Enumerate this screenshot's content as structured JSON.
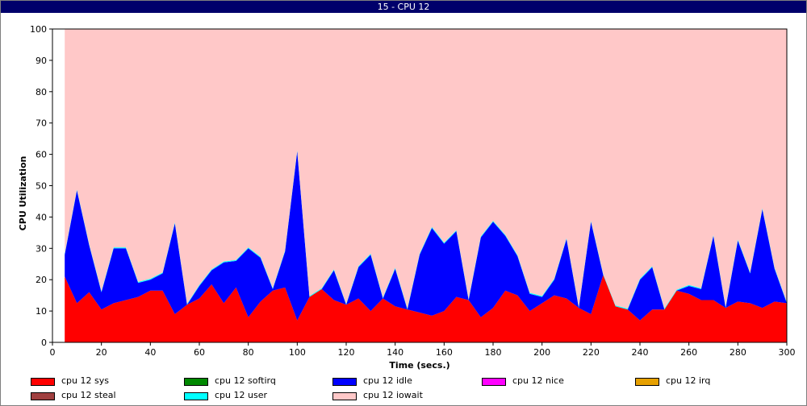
{
  "window": {
    "title": "15 - CPU 12"
  },
  "chart_data": {
    "type": "area",
    "title": "15 - CPU 12",
    "xlabel": "Time (secs.)",
    "ylabel": "CPU Utilization",
    "xlim": [
      0,
      300
    ],
    "ylim": [
      0,
      100
    ],
    "xticks": [
      0,
      20,
      40,
      60,
      80,
      100,
      120,
      140,
      160,
      180,
      200,
      220,
      240,
      260,
      280,
      300
    ],
    "yticks": [
      0,
      10,
      20,
      30,
      40,
      50,
      60,
      70,
      80,
      90,
      100
    ],
    "grid": false,
    "legend_position": "bottom",
    "x": [
      5,
      10,
      15,
      20,
      25,
      30,
      35,
      40,
      45,
      50,
      55,
      60,
      65,
      70,
      75,
      80,
      85,
      90,
      95,
      100,
      105,
      110,
      115,
      120,
      125,
      130,
      135,
      140,
      145,
      150,
      155,
      160,
      165,
      170,
      175,
      180,
      185,
      190,
      195,
      200,
      205,
      210,
      215,
      220,
      225,
      230,
      235,
      240,
      245,
      250,
      255,
      260,
      265,
      270,
      275,
      280,
      285,
      290,
      295,
      300
    ],
    "series": [
      {
        "name": "cpu 12 sys",
        "color": "#ff0000",
        "values": [
          21,
          12.5,
          16,
          10.5,
          12.5,
          13.5,
          14.5,
          16.5,
          16.5,
          9,
          12,
          14,
          18.5,
          12.5,
          17.5,
          8,
          13,
          16.5,
          17.5,
          7,
          14.5,
          17,
          13.5,
          12,
          14,
          10,
          14,
          11.5,
          10.5,
          9.5,
          8.5,
          10,
          14.5,
          13.5,
          8,
          11,
          16.5,
          15,
          10,
          12.5,
          15,
          14,
          11,
          9,
          21.5,
          11.5,
          10.5,
          7,
          10.5,
          10.5,
          16.5,
          15.5,
          13.5,
          13.5,
          11,
          13,
          12.5,
          11,
          13,
          12.5
        ]
      },
      {
        "name": "cpu 12 softirq",
        "color": "#008800",
        "values": [
          0,
          0,
          0,
          0,
          0,
          0,
          0,
          0,
          0,
          0,
          0,
          0,
          0,
          0,
          0,
          0,
          0,
          0,
          0,
          0,
          0,
          0,
          0,
          0,
          0,
          0,
          0,
          0,
          0,
          0,
          0,
          0,
          0,
          0,
          0,
          0,
          0,
          0,
          0,
          0,
          0,
          0,
          0,
          0,
          0,
          0,
          0,
          0,
          0,
          0,
          0,
          0,
          0,
          0,
          0,
          0,
          0,
          0,
          0,
          0
        ]
      },
      {
        "name": "cpu 12 idle",
        "color": "#0000ff",
        "values": [
          7,
          36,
          15,
          5.5,
          17.5,
          16.5,
          4.5,
          3.5,
          5.5,
          29,
          0,
          4,
          4.5,
          13,
          8.5,
          22,
          14,
          0.5,
          11.5,
          54,
          0,
          0,
          9.5,
          0,
          10,
          18,
          0,
          12,
          0,
          18.5,
          28,
          21.5,
          21,
          0,
          25.5,
          27.5,
          17.5,
          12.5,
          5.5,
          2,
          5,
          19,
          0,
          29.5,
          0,
          0,
          0,
          13,
          13.5,
          0,
          0,
          2.5,
          3.5,
          20.5,
          0,
          19.5,
          9.5,
          31.5,
          10.5,
          0
        ]
      },
      {
        "name": "cpu 12 nice",
        "color": "#ff00ff",
        "values": [
          0,
          0,
          0,
          0,
          0,
          0,
          0,
          0,
          0,
          0,
          0,
          0,
          0,
          0,
          0,
          0,
          0,
          0,
          0,
          0,
          0,
          0,
          0,
          0,
          0,
          0,
          0,
          0,
          0,
          0,
          0,
          0,
          0,
          0,
          0,
          0,
          0,
          0,
          0,
          0,
          0,
          0,
          0,
          0,
          0,
          0,
          0,
          0,
          0,
          0,
          0,
          0,
          0,
          0,
          0,
          0,
          0,
          0,
          0,
          0
        ]
      },
      {
        "name": "cpu 12 irq",
        "color": "#e6a000",
        "values": [
          0,
          0,
          0,
          0,
          0,
          0,
          0,
          0,
          0,
          0,
          0,
          0,
          0,
          0,
          0,
          0,
          0,
          0,
          0,
          0,
          0,
          0,
          0,
          0,
          0,
          0,
          0,
          0,
          0,
          0,
          0,
          0,
          0,
          0,
          0,
          0,
          0,
          0,
          0,
          0,
          0,
          0,
          0,
          0,
          0,
          0,
          0,
          0,
          0,
          0,
          0,
          0,
          0,
          0,
          0,
          0,
          0,
          0,
          0,
          0
        ]
      },
      {
        "name": "cpu 12 steal",
        "color": "#a04040",
        "values": [
          0,
          0,
          0,
          0,
          0,
          0,
          0,
          0,
          0,
          0,
          0,
          0,
          0,
          0,
          0,
          0,
          0,
          0,
          0,
          0,
          0,
          0,
          0,
          0,
          0,
          0,
          0,
          0,
          0,
          0,
          0,
          0,
          0,
          0,
          0,
          0,
          0,
          0,
          0,
          0,
          0,
          0,
          0,
          0,
          0,
          0,
          0,
          0,
          0,
          0,
          0,
          0,
          0,
          0,
          0,
          0,
          0,
          0,
          0,
          0
        ]
      },
      {
        "name": "cpu 12 user",
        "color": "#00ffff",
        "values": [
          0.3,
          0.3,
          0.3,
          0.3,
          0.3,
          0.3,
          0.3,
          0.3,
          0.3,
          0.3,
          0.3,
          0.3,
          0.3,
          0.3,
          0.3,
          0.3,
          0.3,
          0.3,
          0.3,
          0.3,
          0.3,
          0.3,
          0.3,
          0.3,
          0.3,
          0.3,
          0.3,
          0.3,
          0.3,
          0.3,
          0.3,
          0.3,
          0.3,
          0.3,
          0.3,
          0.3,
          0.3,
          0.3,
          0.3,
          0.3,
          0.3,
          0.3,
          0.3,
          0.3,
          0.3,
          0.3,
          0.3,
          0.3,
          0.3,
          0.3,
          0.3,
          0.3,
          0.3,
          0.3,
          0.3,
          0.3,
          0.3,
          0.3,
          0.3,
          0.3
        ]
      },
      {
        "name": "cpu 12 iowait",
        "color": "#ffc8c8",
        "values": [
          71.7,
          51.2,
          68.7,
          83.7,
          69.7,
          69.7,
          80.7,
          79.7,
          77.7,
          61.7,
          87.7,
          81.7,
          76.7,
          74.2,
          73.7,
          69.7,
          72.7,
          82.7,
          70.7,
          38.7,
          85.2,
          82.7,
          76.7,
          87.7,
          75.7,
          71.7,
          85.7,
          76.2,
          89.2,
          71.7,
          63.2,
          68.2,
          64.2,
          86.2,
          66.2,
          61.2,
          65.7,
          72.2,
          84.2,
          85.2,
          79.7,
          66.7,
          88.7,
          61.2,
          78.2,
          88.2,
          89.2,
          79.7,
          75.7,
          89.2,
          83.2,
          81.7,
          82.7,
          65.7,
          88.7,
          67.2,
          77.7,
          57.2,
          76.2,
          87.2
        ]
      }
    ]
  },
  "legend": [
    {
      "label": "cpu 12 sys",
      "color": "#ff0000"
    },
    {
      "label": "cpu 12 softirq",
      "color": "#008800"
    },
    {
      "label": "cpu 12 idle",
      "color": "#0000ff"
    },
    {
      "label": "cpu 12 nice",
      "color": "#ff00ff"
    },
    {
      "label": "cpu 12 irq",
      "color": "#e6a000"
    },
    {
      "label": "cpu 12 steal",
      "color": "#a04040"
    },
    {
      "label": "cpu 12 user",
      "color": "#00ffff"
    },
    {
      "label": "cpu 12 iowait",
      "color": "#ffc8c8"
    }
  ]
}
